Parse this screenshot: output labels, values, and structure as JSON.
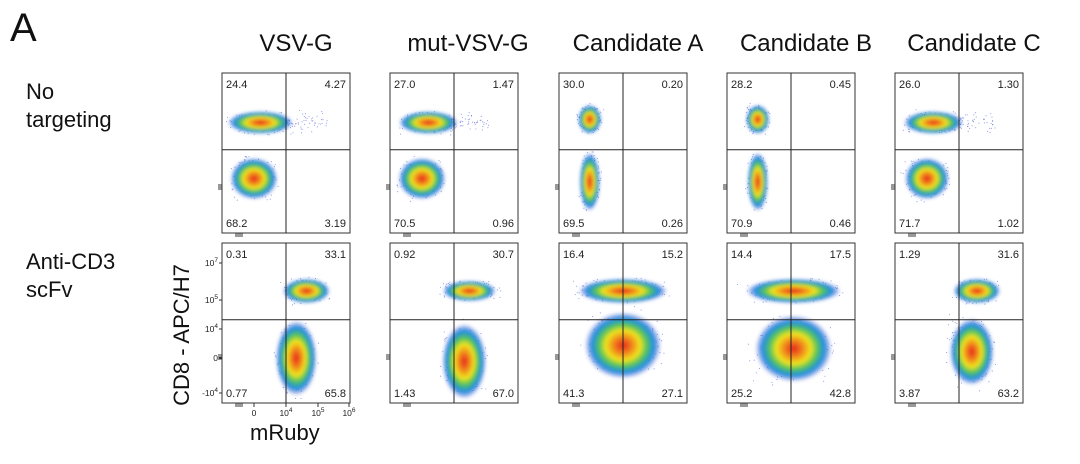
{
  "panel_label": "A",
  "columns": [
    "VSV-G",
    "mut-VSV-G",
    "Candidate A",
    "Candidate B",
    "Candidate C"
  ],
  "rows": [
    {
      "line1": "No",
      "line2": "targeting"
    },
    {
      "line1": "Anti-CD3",
      "line2": "scFv"
    }
  ],
  "y_axis_label": "CD8 - APC/H7",
  "x_axis_label": "mRuby",
  "y_ticks": [
    {
      "base": "10",
      "exp": "7"
    },
    {
      "base": "10",
      "exp": "5"
    },
    {
      "base": "10",
      "exp": "4"
    },
    {
      "base": "0",
      "exp": ""
    },
    {
      "base": "-10",
      "exp": "4"
    }
  ],
  "x_ticks": [
    {
      "base": "0",
      "exp": ""
    },
    {
      "base": "10",
      "exp": "4"
    },
    {
      "base": "10",
      "exp": "5"
    },
    {
      "base": "10",
      "exp": "6"
    }
  ],
  "chart_data": [
    {
      "type": "scatter",
      "row": "No targeting",
      "column": "VSV-G",
      "quadrants": {
        "upper_left": "24.4",
        "upper_right": "4.27",
        "lower_left": "68.2",
        "lower_right": "3.19"
      }
    },
    {
      "type": "scatter",
      "row": "No targeting",
      "column": "mut-VSV-G",
      "quadrants": {
        "upper_left": "27.0",
        "upper_right": "1.47",
        "lower_left": "70.5",
        "lower_right": "0.96"
      }
    },
    {
      "type": "scatter",
      "row": "No targeting",
      "column": "Candidate A",
      "quadrants": {
        "upper_left": "30.0",
        "upper_right": "0.20",
        "lower_left": "69.5",
        "lower_right": "0.26"
      }
    },
    {
      "type": "scatter",
      "row": "No targeting",
      "column": "Candidate B",
      "quadrants": {
        "upper_left": "28.2",
        "upper_right": "0.45",
        "lower_left": "70.9",
        "lower_right": "0.46"
      }
    },
    {
      "type": "scatter",
      "row": "No targeting",
      "column": "Candidate C",
      "quadrants": {
        "upper_left": "26.0",
        "upper_right": "1.30",
        "lower_left": "71.7",
        "lower_right": "1.02"
      }
    },
    {
      "type": "scatter",
      "row": "Anti-CD3 scFv",
      "column": "VSV-G",
      "quadrants": {
        "upper_left": "0.31",
        "upper_right": "33.1",
        "lower_left": "0.77",
        "lower_right": "65.8"
      }
    },
    {
      "type": "scatter",
      "row": "Anti-CD3 scFv",
      "column": "mut-VSV-G",
      "quadrants": {
        "upper_left": "0.92",
        "upper_right": "30.7",
        "lower_left": "1.43",
        "lower_right": "67.0"
      }
    },
    {
      "type": "scatter",
      "row": "Anti-CD3 scFv",
      "column": "Candidate A",
      "quadrants": {
        "upper_left": "16.4",
        "upper_right": "15.2",
        "lower_left": "41.3",
        "lower_right": "27.1"
      }
    },
    {
      "type": "scatter",
      "row": "Anti-CD3 scFv",
      "column": "Candidate B",
      "quadrants": {
        "upper_left": "14.4",
        "upper_right": "17.5",
        "lower_left": "25.2",
        "lower_right": "42.8"
      }
    },
    {
      "type": "scatter",
      "row": "Anti-CD3 scFv",
      "column": "Candidate C",
      "quadrants": {
        "upper_left": "1.29",
        "upper_right": "31.6",
        "lower_left": "3.87",
        "lower_right": "63.2"
      }
    }
  ]
}
